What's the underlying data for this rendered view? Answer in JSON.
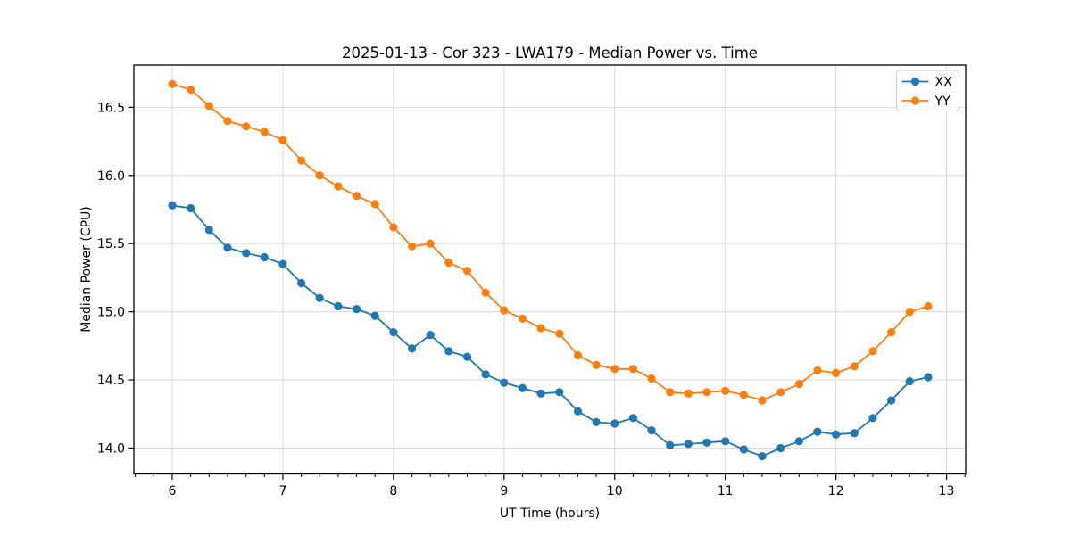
{
  "chart_data": {
    "type": "line",
    "title": "2025-01-13 - Cor 323 - LWA179 - Median Power vs. Time",
    "xlabel": "UT Time (hours)",
    "ylabel": "Median Power (CPU)",
    "xlim": [
      5.653,
      13.173
    ],
    "ylim": [
      13.81,
      16.81
    ],
    "grid": true,
    "legend_position": "upper right",
    "x_tick_values": [
      6,
      7,
      8,
      9,
      10,
      11,
      12,
      13
    ],
    "x_tick_labels": [
      "6",
      "7",
      "8",
      "9",
      "10",
      "11",
      "12",
      "13"
    ],
    "x_minor_ticks_per_hour": 6,
    "y_tick_values": [
      14.0,
      14.5,
      15.0,
      15.5,
      16.0,
      16.5
    ],
    "y_tick_labels": [
      "14.0",
      "14.5",
      "15.0",
      "15.5",
      "16.0",
      "16.5"
    ],
    "colors": {
      "grid": "#d9d9d9",
      "spine": "#000000",
      "tick": "#000000",
      "legend_border": "#cccccc",
      "background": "#ffffff"
    },
    "x": [
      6.0,
      6.167,
      6.333,
      6.5,
      6.667,
      6.833,
      7.0,
      7.167,
      7.333,
      7.5,
      7.667,
      7.833,
      8.0,
      8.167,
      8.333,
      8.5,
      8.667,
      8.833,
      9.0,
      9.167,
      9.333,
      9.5,
      9.667,
      9.833,
      10.0,
      10.167,
      10.333,
      10.5,
      10.667,
      10.833,
      11.0,
      11.167,
      11.333,
      11.5,
      11.667,
      11.833,
      12.0,
      12.167,
      12.333,
      12.5,
      12.667,
      12.833
    ],
    "series": [
      {
        "name": "XX",
        "color": "#1f77b4",
        "values": [
          15.78,
          15.76,
          15.6,
          15.47,
          15.43,
          15.4,
          15.35,
          15.21,
          15.1,
          15.04,
          15.02,
          14.97,
          14.85,
          14.73,
          14.83,
          14.71,
          14.67,
          14.54,
          14.48,
          14.44,
          14.4,
          14.41,
          14.27,
          14.19,
          14.18,
          14.22,
          14.13,
          14.02,
          14.03,
          14.04,
          14.05,
          13.99,
          13.94,
          14.0,
          14.05,
          14.12,
          14.1,
          14.11,
          14.22,
          14.35,
          14.49,
          14.52
        ]
      },
      {
        "name": "YY",
        "color": "#ff7f0e",
        "values": [
          16.67,
          16.63,
          16.51,
          16.4,
          16.36,
          16.32,
          16.26,
          16.11,
          16.0,
          15.92,
          15.85,
          15.79,
          15.62,
          15.48,
          15.5,
          15.36,
          15.3,
          15.14,
          15.01,
          14.95,
          14.88,
          14.84,
          14.68,
          14.61,
          14.58,
          14.58,
          14.51,
          14.41,
          14.4,
          14.41,
          14.42,
          14.39,
          14.35,
          14.41,
          14.47,
          14.57,
          14.55,
          14.6,
          14.71,
          14.85,
          15.0,
          15.04
        ]
      }
    ]
  }
}
